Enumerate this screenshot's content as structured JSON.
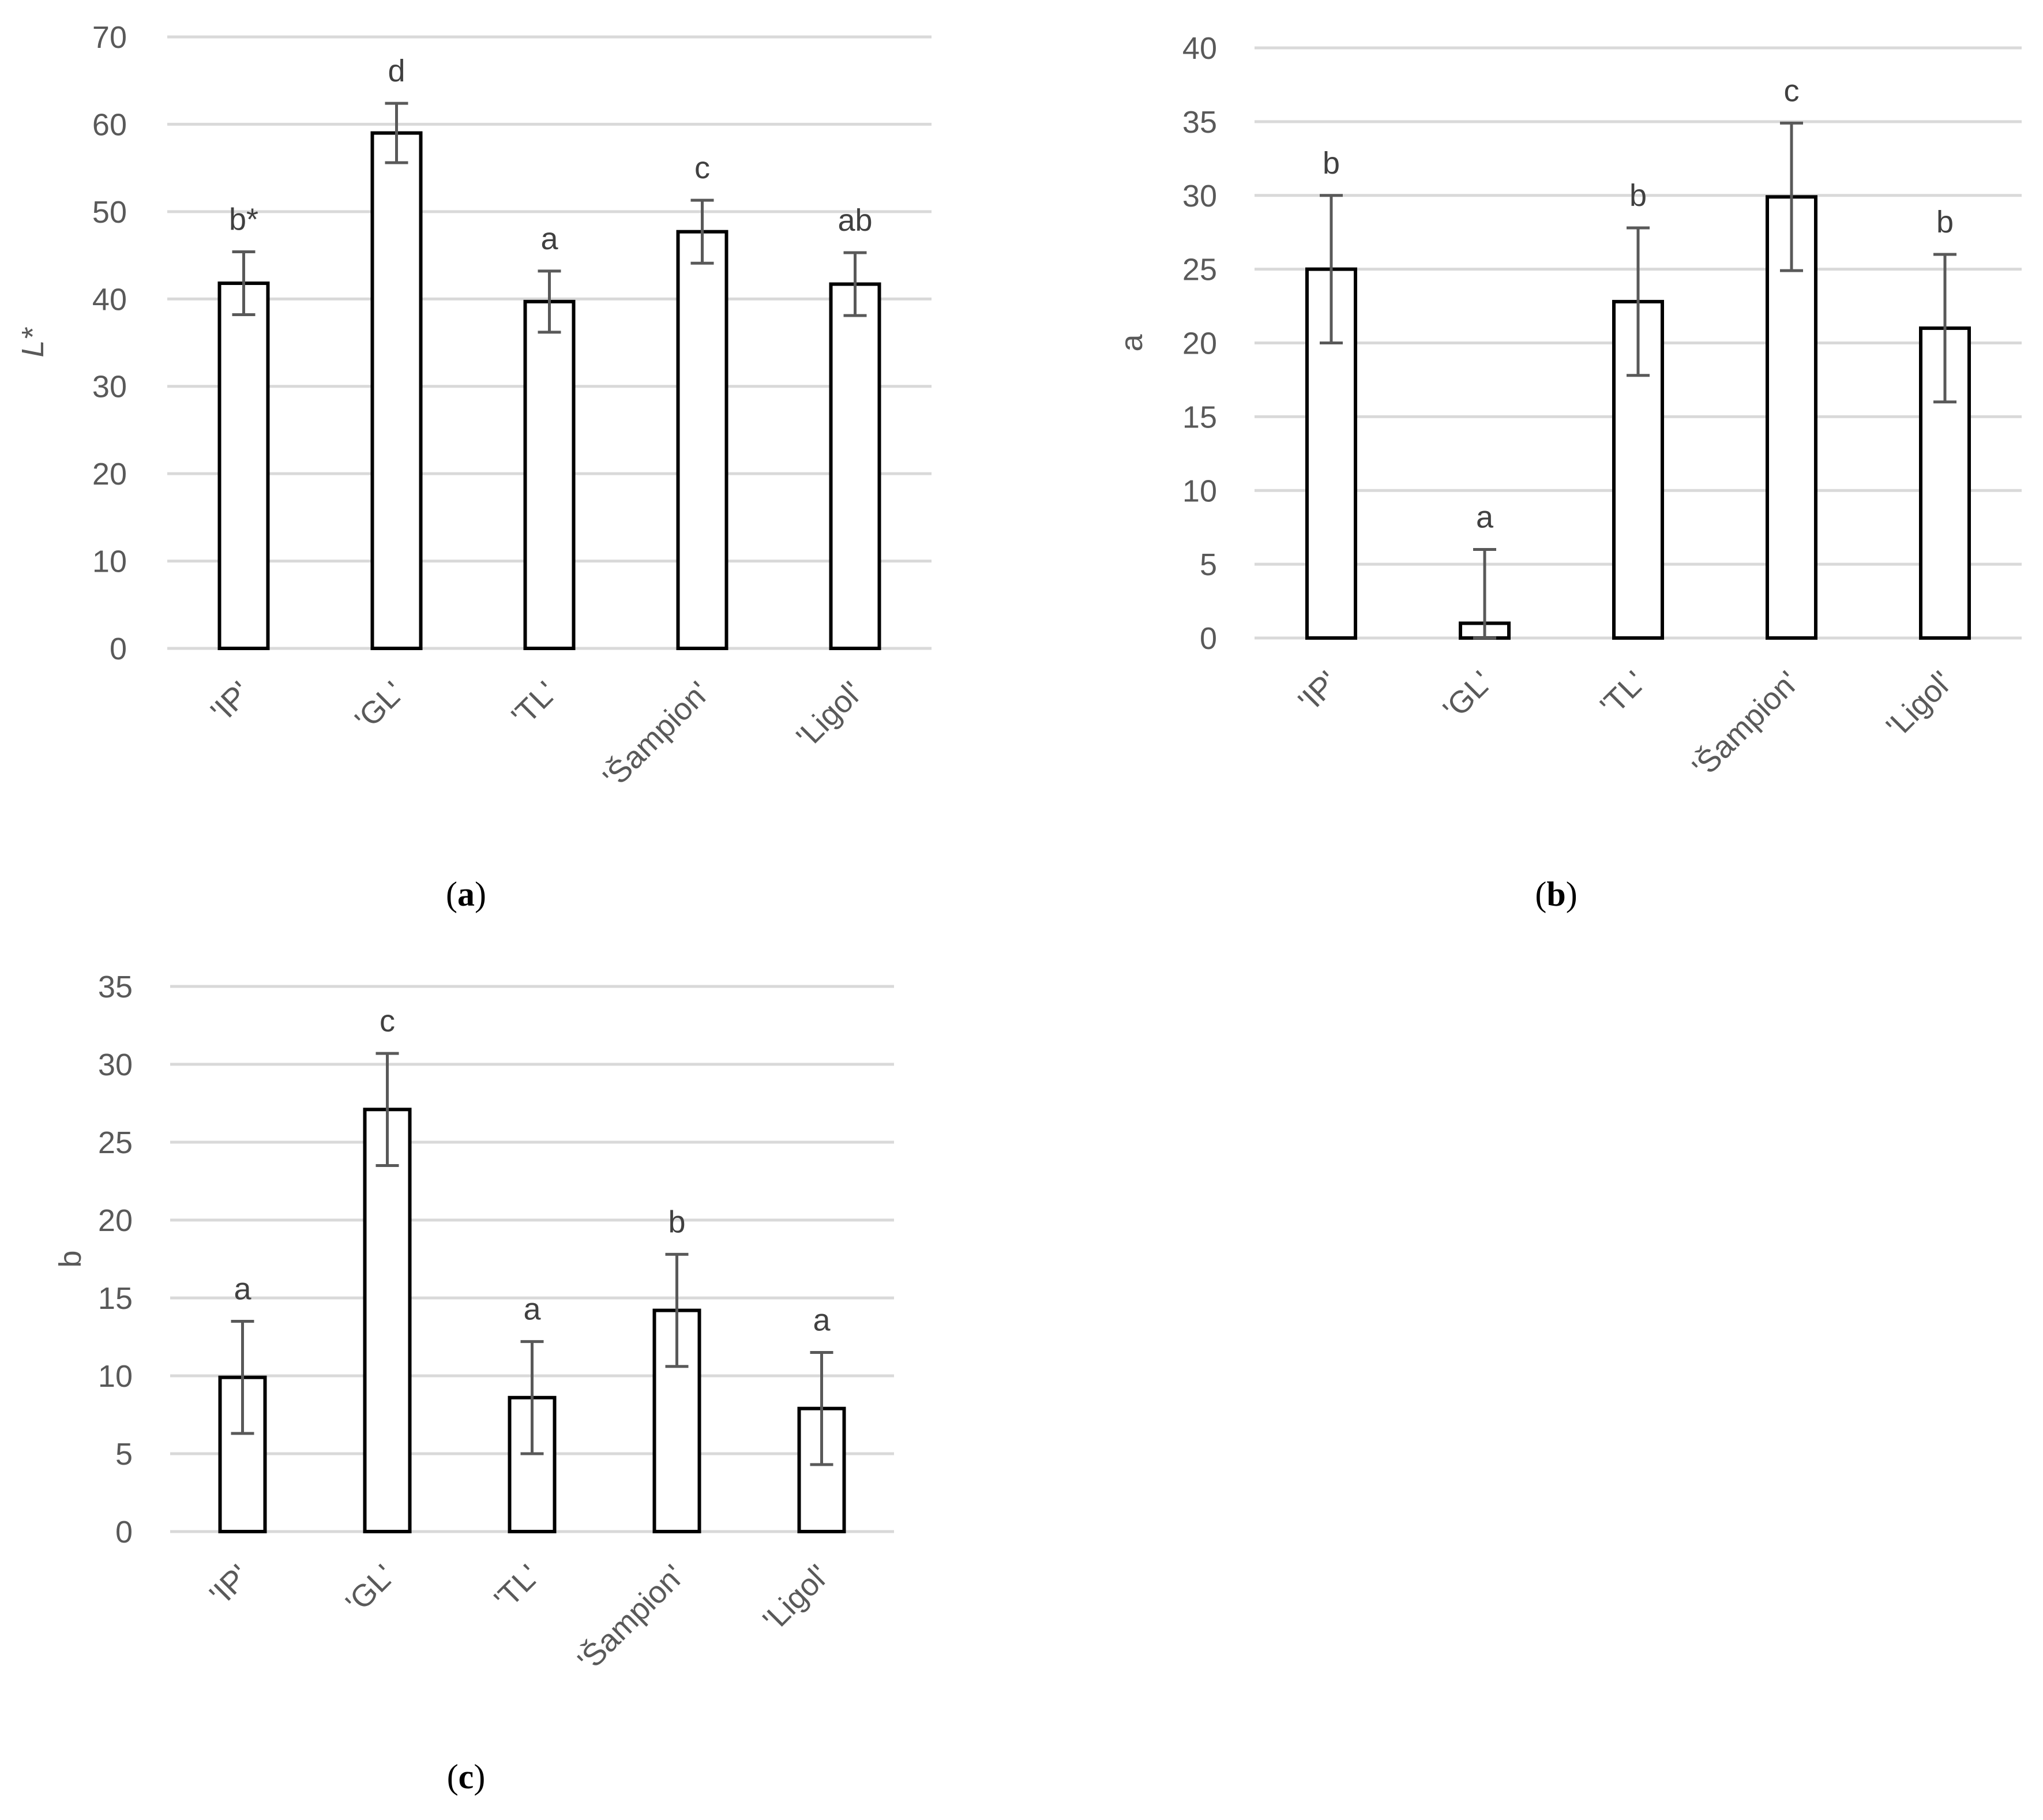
{
  "chart_data": [
    {
      "type": "bar",
      "title": "",
      "caption_letter": "a",
      "xlabel": "",
      "ylabel": "L*",
      "ylim": [
        0,
        70
      ],
      "yticks": [
        0,
        10,
        20,
        30,
        40,
        50,
        60,
        70
      ],
      "grid": true,
      "categories": [
        "'IP'",
        "'GL'",
        "'TL'",
        "'Šampion'",
        "'Ligol'"
      ],
      "values": [
        41.8,
        59.0,
        39.7,
        47.7,
        41.7
      ],
      "errors": [
        3.6,
        3.4,
        3.5,
        3.6,
        3.6
      ],
      "labels": [
        "b*",
        "d",
        "a",
        "c",
        "ab"
      ]
    },
    {
      "type": "bar",
      "title": "",
      "caption_letter": "b",
      "xlabel": "",
      "ylabel": "a",
      "ylim": [
        0,
        40
      ],
      "yticks": [
        0,
        5,
        10,
        15,
        20,
        25,
        30,
        35,
        40
      ],
      "grid": true,
      "categories": [
        "'IP'",
        "'GL'",
        "'TL'",
        "'Šampion'",
        "'Ligol'"
      ],
      "values": [
        25.0,
        1.0,
        22.8,
        29.9,
        21.0
      ],
      "errors": [
        5.0,
        5.0,
        5.0,
        5.0,
        5.0
      ],
      "labels": [
        "b",
        "a",
        "b",
        "c",
        "b"
      ]
    },
    {
      "type": "bar",
      "title": "",
      "caption_letter": "c",
      "xlabel": "",
      "ylabel": "b",
      "ylim": [
        0,
        35
      ],
      "yticks": [
        0,
        5,
        10,
        15,
        20,
        25,
        30,
        35
      ],
      "grid": true,
      "categories": [
        "'IP'",
        "'GL'",
        "'TL'",
        "'Šampion'",
        "'Ligol'"
      ],
      "values": [
        9.9,
        27.1,
        8.6,
        14.2,
        7.9
      ],
      "errors": [
        3.6,
        3.6,
        3.6,
        3.6,
        3.6
      ],
      "labels": [
        "a",
        "c",
        "a",
        "b",
        "a"
      ]
    }
  ]
}
